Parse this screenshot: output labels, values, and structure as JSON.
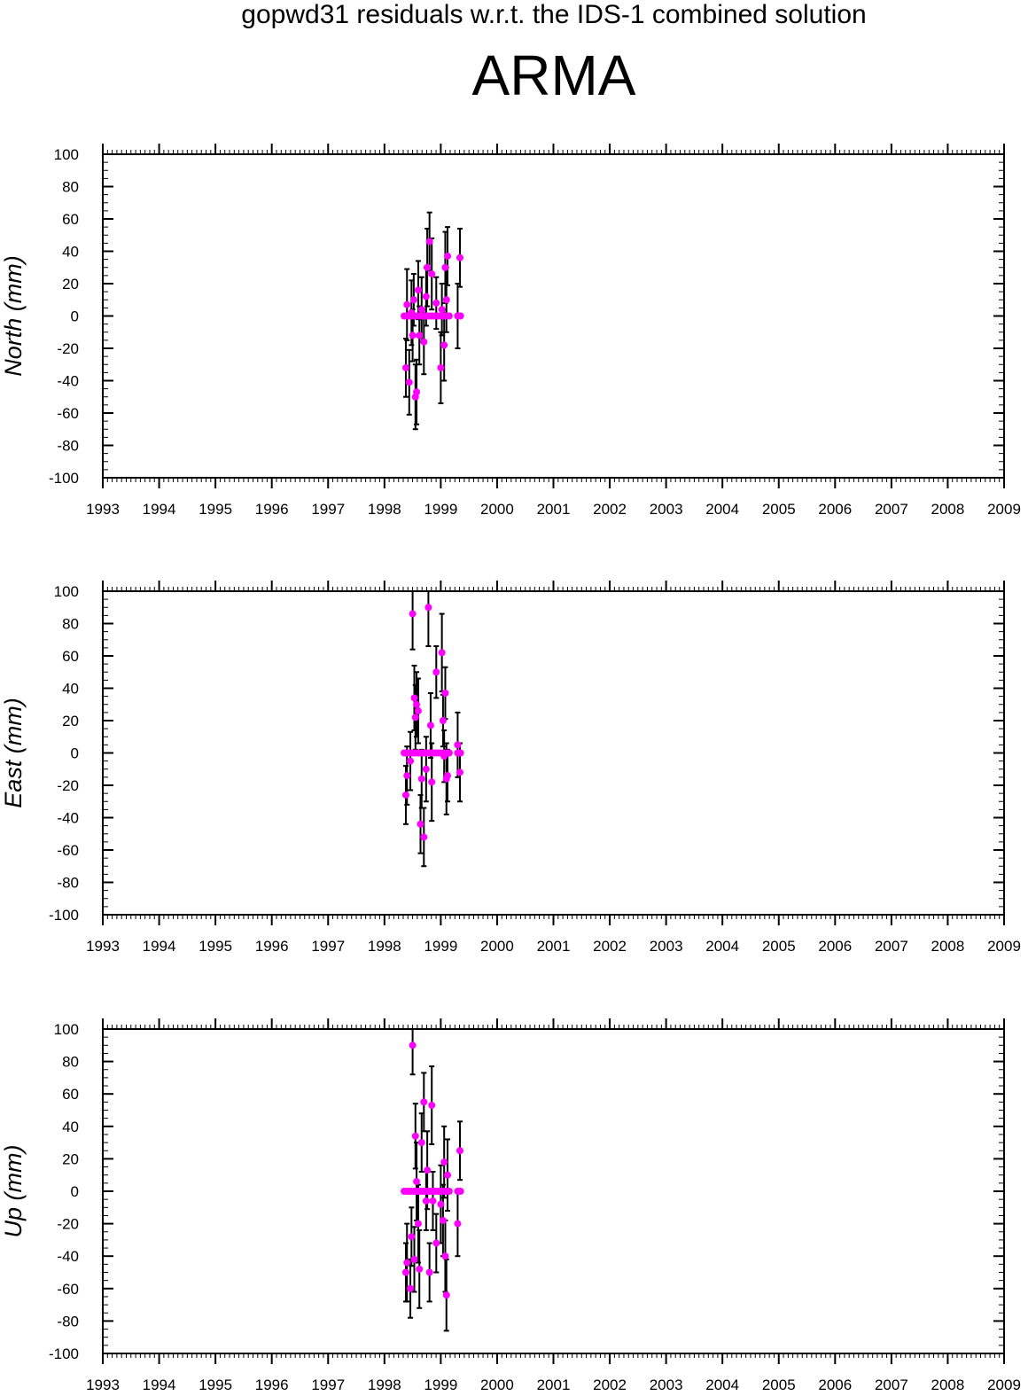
{
  "title": "gopwd31 residuals w.r.t. the IDS-1 combined solution",
  "station": "ARMA",
  "colors": {
    "point": "#ff00ff",
    "errorbar": "#000000",
    "axis": "#000000"
  },
  "chart_data": [
    {
      "type": "scatter",
      "ylabel": "North (mm)",
      "xlim": [
        1993,
        2009
      ],
      "ylim": [
        -100,
        100
      ],
      "x_ticks": [
        "1993",
        "1994",
        "1995",
        "1996",
        "1997",
        "1998",
        "1999",
        "2000",
        "2001",
        "2002",
        "2003",
        "2004",
        "2005",
        "2006",
        "2007",
        "2008",
        "2009"
      ],
      "y_ticks": [
        "100",
        "80",
        "60",
        "40",
        "20",
        "0",
        "-20",
        "-40",
        "-60",
        "-80",
        "-100"
      ],
      "error_bars": true,
      "points": [
        {
          "x": 1998.38,
          "y": -32,
          "err": 18
        },
        {
          "x": 1998.4,
          "y": 7,
          "err": 22
        },
        {
          "x": 1998.44,
          "y": -41,
          "err": 20
        },
        {
          "x": 1998.48,
          "y": 2,
          "err": 20
        },
        {
          "x": 1998.5,
          "y": -12,
          "err": 16
        },
        {
          "x": 1998.52,
          "y": 10,
          "err": 16
        },
        {
          "x": 1998.55,
          "y": -50,
          "err": 20
        },
        {
          "x": 1998.57,
          "y": -47,
          "err": 20
        },
        {
          "x": 1998.6,
          "y": 16,
          "err": 18
        },
        {
          "x": 1998.62,
          "y": -12,
          "err": 18
        },
        {
          "x": 1998.66,
          "y": 4,
          "err": 20
        },
        {
          "x": 1998.7,
          "y": -16,
          "err": 20
        },
        {
          "x": 1998.74,
          "y": 12,
          "err": 18
        },
        {
          "x": 1998.76,
          "y": 30,
          "err": 24
        },
        {
          "x": 1998.8,
          "y": 46,
          "err": 18
        },
        {
          "x": 1998.84,
          "y": 26,
          "err": 22
        },
        {
          "x": 1998.92,
          "y": 8,
          "err": 16
        },
        {
          "x": 1999.0,
          "y": -32,
          "err": 22
        },
        {
          "x": 1999.02,
          "y": 4,
          "err": 16
        },
        {
          "x": 1999.06,
          "y": -18,
          "err": 22
        },
        {
          "x": 1999.08,
          "y": 30,
          "err": 22
        },
        {
          "x": 1999.1,
          "y": 10,
          "err": 20
        },
        {
          "x": 1999.12,
          "y": 37,
          "err": 18
        },
        {
          "x": 1999.3,
          "y": 0,
          "err": 20
        },
        {
          "x": 1999.34,
          "y": 36,
          "err": 18
        }
      ],
      "zero_points": [
        1998.35,
        1998.4,
        1998.45,
        1998.5,
        1998.55,
        1998.6,
        1998.65,
        1998.7,
        1998.75,
        1998.8,
        1998.85,
        1998.9,
        1998.95,
        1999.0,
        1999.05,
        1999.1,
        1999.15,
        1999.3,
        1999.35
      ]
    },
    {
      "type": "scatter",
      "ylabel": "East (mm)",
      "xlim": [
        1993,
        2009
      ],
      "ylim": [
        -100,
        100
      ],
      "x_ticks": [
        "1993",
        "1994",
        "1995",
        "1996",
        "1997",
        "1998",
        "1999",
        "2000",
        "2001",
        "2002",
        "2003",
        "2004",
        "2005",
        "2006",
        "2007",
        "2008",
        "2009"
      ],
      "y_ticks": [
        "100",
        "80",
        "60",
        "40",
        "20",
        "0",
        "-20",
        "-40",
        "-60",
        "-80",
        "-100"
      ],
      "error_bars": true,
      "points": [
        {
          "x": 1998.38,
          "y": -26,
          "err": 18
        },
        {
          "x": 1998.4,
          "y": -14,
          "err": 18
        },
        {
          "x": 1998.46,
          "y": -5,
          "err": 18
        },
        {
          "x": 1998.5,
          "y": 86,
          "err": 22
        },
        {
          "x": 1998.53,
          "y": 34,
          "err": 20
        },
        {
          "x": 1998.55,
          "y": 22,
          "err": 20
        },
        {
          "x": 1998.57,
          "y": 30,
          "err": 20
        },
        {
          "x": 1998.6,
          "y": 26,
          "err": 20
        },
        {
          "x": 1998.64,
          "y": -44,
          "err": 18
        },
        {
          "x": 1998.66,
          "y": -16,
          "err": 18
        },
        {
          "x": 1998.7,
          "y": -52,
          "err": 18
        },
        {
          "x": 1998.74,
          "y": -10,
          "err": 20
        },
        {
          "x": 1998.78,
          "y": 90,
          "err": 24
        },
        {
          "x": 1998.82,
          "y": 17,
          "err": 20
        },
        {
          "x": 1998.84,
          "y": -18,
          "err": 24
        },
        {
          "x": 1998.92,
          "y": 50,
          "err": 16
        },
        {
          "x": 1999.02,
          "y": 62,
          "err": 24
        },
        {
          "x": 1999.04,
          "y": 20,
          "err": 16
        },
        {
          "x": 1999.06,
          "y": -2,
          "err": 16
        },
        {
          "x": 1999.08,
          "y": 37,
          "err": 16
        },
        {
          "x": 1999.1,
          "y": -16,
          "err": 22
        },
        {
          "x": 1999.12,
          "y": -14,
          "err": 16
        },
        {
          "x": 1999.3,
          "y": 5,
          "err": 20
        },
        {
          "x": 1999.34,
          "y": -12,
          "err": 18
        }
      ],
      "zero_points": [
        1998.35,
        1998.4,
        1998.45,
        1998.5,
        1998.55,
        1998.6,
        1998.65,
        1998.7,
        1998.75,
        1998.8,
        1998.85,
        1998.9,
        1998.95,
        1999.0,
        1999.05,
        1999.1,
        1999.15,
        1999.3,
        1999.35
      ]
    },
    {
      "type": "scatter",
      "ylabel": "Up (mm)",
      "xlim": [
        1993,
        2009
      ],
      "ylim": [
        -100,
        100
      ],
      "x_ticks": [
        "1993",
        "1994",
        "1995",
        "1996",
        "1997",
        "1998",
        "1999",
        "2000",
        "2001",
        "2002",
        "2003",
        "2004",
        "2005",
        "2006",
        "2007",
        "2008",
        "2009"
      ],
      "y_ticks": [
        "100",
        "80",
        "60",
        "40",
        "20",
        "0",
        "-20",
        "-40",
        "-60",
        "-80",
        "-100"
      ],
      "error_bars": true,
      "points": [
        {
          "x": 1998.38,
          "y": -50,
          "err": 18
        },
        {
          "x": 1998.4,
          "y": -44,
          "err": 24
        },
        {
          "x": 1998.46,
          "y": -60,
          "err": 18
        },
        {
          "x": 1998.48,
          "y": -28,
          "err": 18
        },
        {
          "x": 1998.5,
          "y": 90,
          "err": 18
        },
        {
          "x": 1998.53,
          "y": -42,
          "err": 20
        },
        {
          "x": 1998.55,
          "y": 34,
          "err": 20
        },
        {
          "x": 1998.57,
          "y": 6,
          "err": 24
        },
        {
          "x": 1998.6,
          "y": -20,
          "err": 24
        },
        {
          "x": 1998.62,
          "y": -48,
          "err": 24
        },
        {
          "x": 1998.66,
          "y": 30,
          "err": 18
        },
        {
          "x": 1998.7,
          "y": 55,
          "err": 18
        },
        {
          "x": 1998.74,
          "y": -6,
          "err": 18
        },
        {
          "x": 1998.76,
          "y": 13,
          "err": 24
        },
        {
          "x": 1998.8,
          "y": -50,
          "err": 18
        },
        {
          "x": 1998.84,
          "y": 53,
          "err": 24
        },
        {
          "x": 1998.86,
          "y": -6,
          "err": 18
        },
        {
          "x": 1998.92,
          "y": -32,
          "err": 18
        },
        {
          "x": 1999.0,
          "y": -8,
          "err": 24
        },
        {
          "x": 1999.04,
          "y": -18,
          "err": 22
        },
        {
          "x": 1999.06,
          "y": 18,
          "err": 22
        },
        {
          "x": 1999.08,
          "y": -40,
          "err": 22
        },
        {
          "x": 1999.1,
          "y": -64,
          "err": 22
        },
        {
          "x": 1999.12,
          "y": 10,
          "err": 22
        },
        {
          "x": 1999.3,
          "y": -20,
          "err": 20
        },
        {
          "x": 1999.34,
          "y": 25,
          "err": 18
        }
      ],
      "zero_points": [
        1998.35,
        1998.4,
        1998.45,
        1998.5,
        1998.55,
        1998.6,
        1998.65,
        1998.7,
        1998.75,
        1998.8,
        1998.85,
        1998.9,
        1998.95,
        1999.0,
        1999.05,
        1999.1,
        1999.15,
        1999.3,
        1999.35
      ]
    }
  ]
}
